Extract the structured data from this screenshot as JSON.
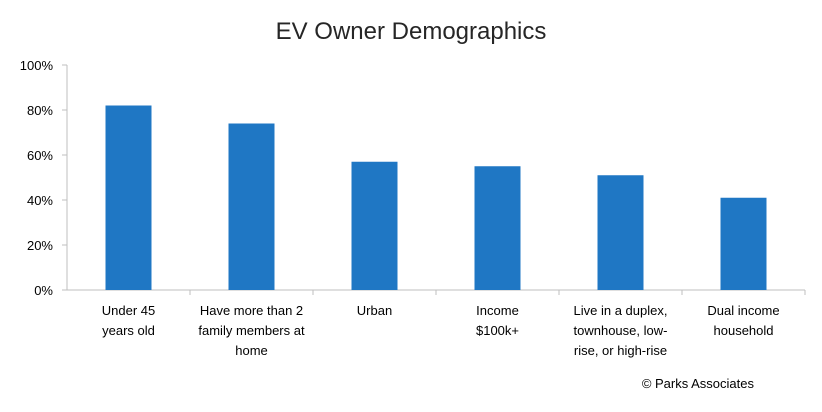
{
  "chart_data": {
    "type": "bar",
    "title": "EV Owner Demographics",
    "categories": [
      [
        "Under 45",
        "years old"
      ],
      [
        "Have more than 2",
        "family members at",
        "home"
      ],
      [
        "Urban"
      ],
      [
        "Income",
        "$100k+"
      ],
      [
        "Live in a duplex,",
        "townhouse, low-",
        "rise, or high-rise"
      ],
      [
        "Dual income",
        "household"
      ]
    ],
    "values": [
      82,
      74,
      57,
      55,
      51,
      41
    ],
    "ylim": [
      0,
      100
    ],
    "yticks": [
      "0%",
      "20%",
      "40%",
      "60%",
      "80%",
      "100%"
    ],
    "ytick_values": [
      0,
      20,
      40,
      60,
      80,
      100
    ],
    "bar_color": "#1f77c4",
    "grid": false,
    "legend": "none"
  },
  "credit": "© Parks Associates"
}
